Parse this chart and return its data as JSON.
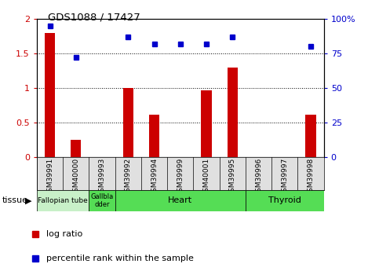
{
  "title": "GDS1088 / 17427",
  "samples": [
    "GSM39991",
    "GSM40000",
    "GSM39993",
    "GSM39992",
    "GSM39994",
    "GSM39999",
    "GSM40001",
    "GSM39995",
    "GSM39996",
    "GSM39997",
    "GSM39998"
  ],
  "log_ratio": [
    1.8,
    0.25,
    0.0,
    1.0,
    0.62,
    0.0,
    0.97,
    1.3,
    0.0,
    0.0,
    0.62
  ],
  "percentile_rank": [
    95,
    72,
    null,
    87,
    82,
    82,
    82,
    87,
    null,
    null,
    80
  ],
  "tissue_groups": [
    {
      "label": "Fallopian tube",
      "start": 0,
      "end": 2,
      "color": "#d0f0d0"
    },
    {
      "label": "Gallbla\ndder",
      "start": 2,
      "end": 3,
      "color": "#5cd65c"
    },
    {
      "label": "Heart",
      "start": 3,
      "end": 8,
      "color": "#5cd65c"
    },
    {
      "label": "Thyroid",
      "start": 8,
      "end": 11,
      "color": "#5cd65c"
    }
  ],
  "ylim_left": [
    0,
    2
  ],
  "ylim_right": [
    0,
    100
  ],
  "yticks_left": [
    0,
    0.5,
    1.0,
    1.5,
    2.0
  ],
  "ytick_labels_left": [
    "0",
    "0.5",
    "1",
    "1.5",
    "2"
  ],
  "yticks_right": [
    0,
    25,
    50,
    75,
    100
  ],
  "ytick_labels_right": [
    "0",
    "25",
    "50",
    "75",
    "100%"
  ],
  "bar_color": "#cc0000",
  "dot_color": "#0000cc",
  "bg_color": "#ffffff",
  "bar_width": 0.4,
  "tick_bg_color": "#e0e0e0",
  "fallopian_color": "#c8f0c8",
  "heart_thyroid_color": "#55dd55"
}
